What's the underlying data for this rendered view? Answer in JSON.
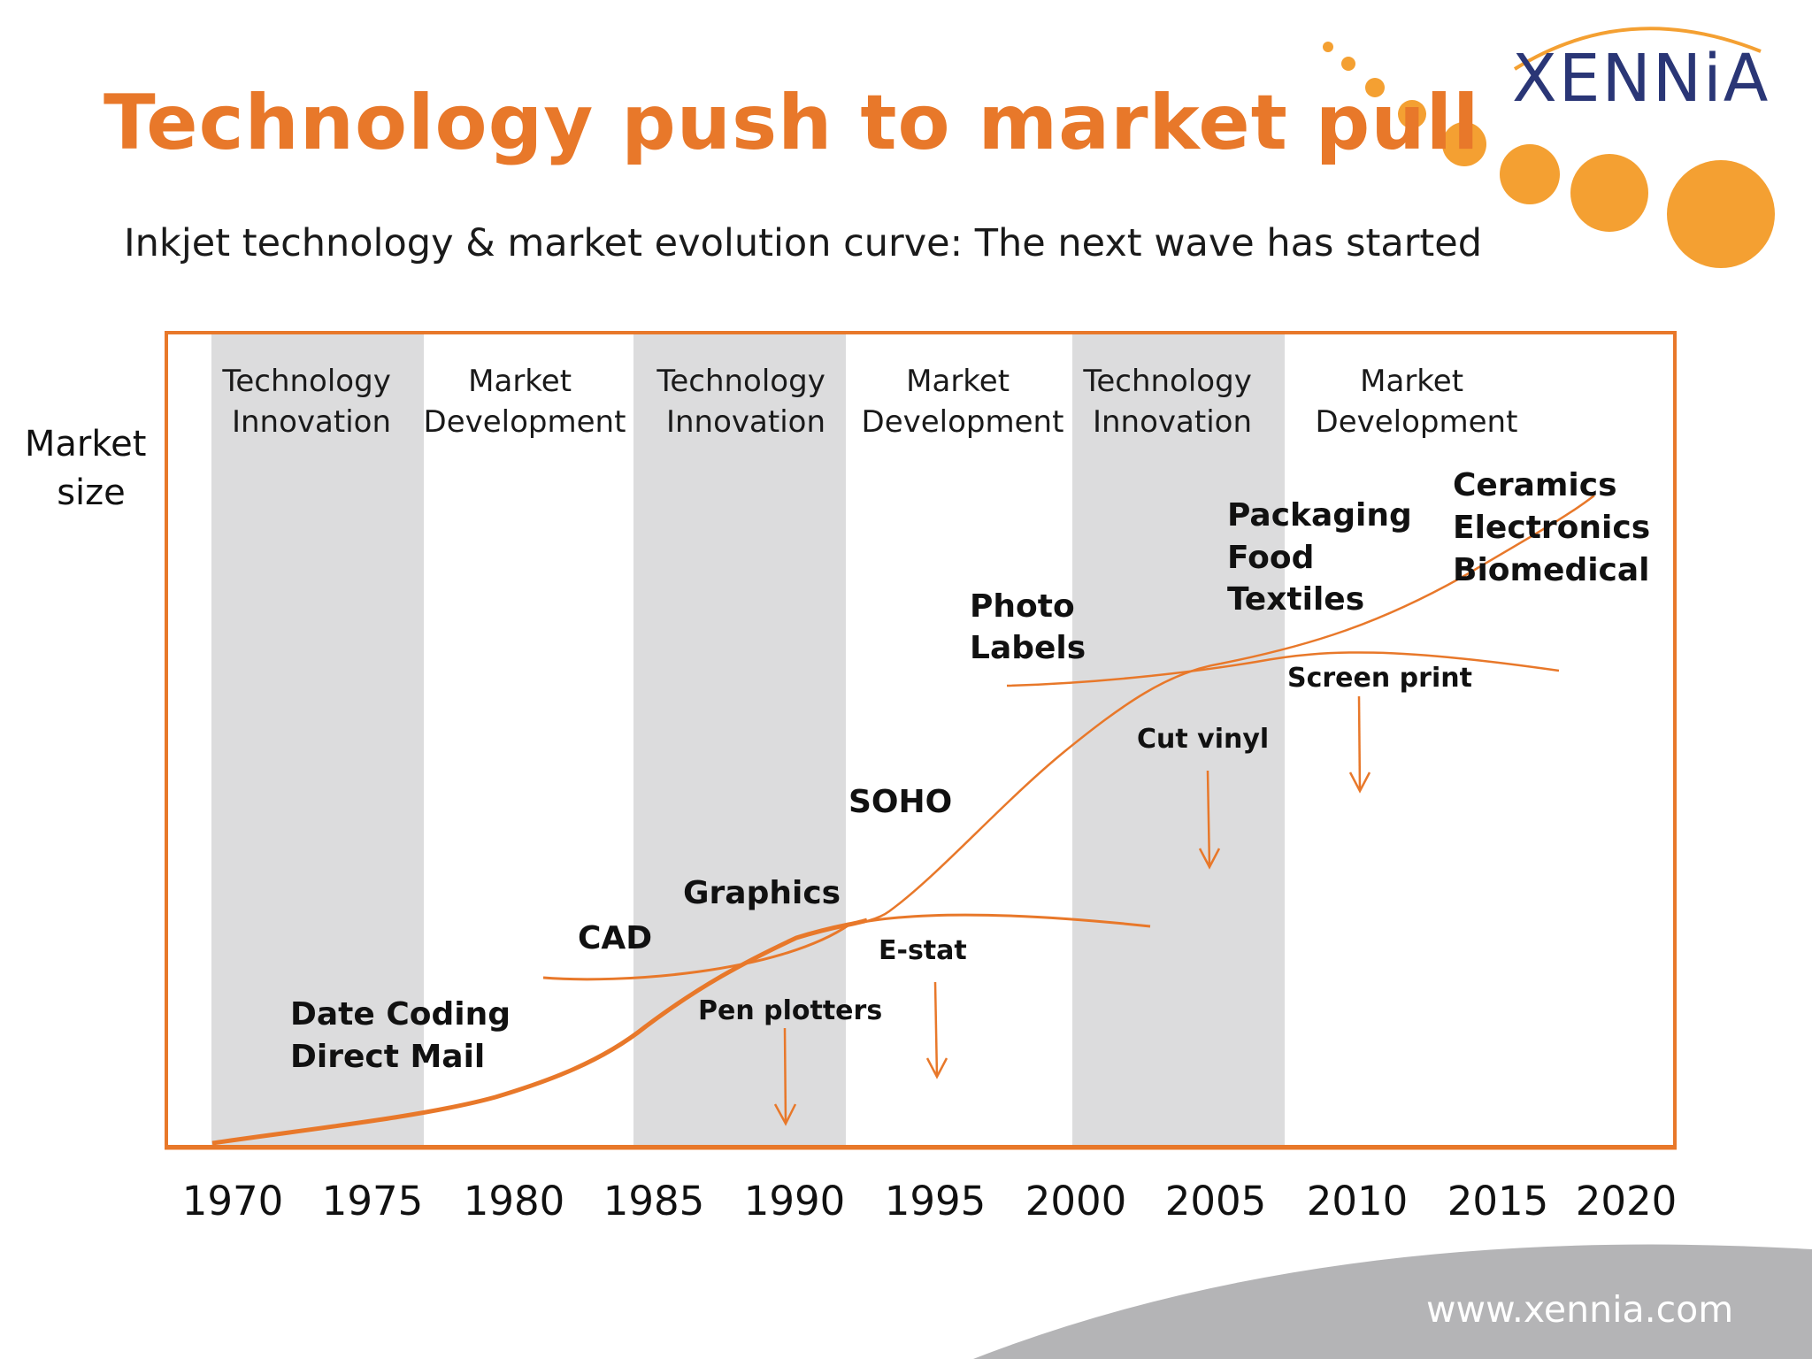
{
  "header": {
    "title": "Technology push to market pull",
    "subtitle": "Inkjet technology & market evolution curve: The next wave has started"
  },
  "logo": {
    "text": "XENNiA"
  },
  "footer": {
    "url": "www.xennia.com"
  },
  "colors": {
    "accent": "#e8782a",
    "band": "#dcdcdd",
    "logo": "#2a3676",
    "swoosh": "#b4b4b6"
  },
  "chart": {
    "y_label_line1": "Market",
    "y_label_line2": "size",
    "years": [
      "1970",
      "1975",
      "1980",
      "1985",
      "1990",
      "1995",
      "2000",
      "2005",
      "2010",
      "2015",
      "2020"
    ],
    "phases": [
      {
        "line1": "Technology",
        "line2": "Innovation",
        "shaded": true
      },
      {
        "line1": "Market",
        "line2": "Development",
        "shaded": false
      },
      {
        "line1": "Technology",
        "line2": "Innovation",
        "shaded": true
      },
      {
        "line1": "Market",
        "line2": "Development",
        "shaded": false
      },
      {
        "line1": "Technology",
        "line2": "Innovation",
        "shaded": true
      },
      {
        "line1": "Market",
        "line2": "Development",
        "shaded": false
      }
    ],
    "applications": {
      "date_coding": "Date Coding",
      "direct_mail": "Direct Mail",
      "cad": "CAD",
      "graphics": "Graphics",
      "soho": "SOHO",
      "photo": "Photo",
      "labels": "Labels",
      "packaging": "Packaging",
      "food": "Food",
      "textiles": "Textiles",
      "ceramics": "Ceramics",
      "electronics": "Electronics",
      "biomedical": "Biomedical"
    },
    "declining": {
      "pen_plotters": "Pen plotters",
      "e_stat": "E-stat",
      "cut_vinyl": "Cut vinyl",
      "screen_print": "Screen print"
    }
  }
}
